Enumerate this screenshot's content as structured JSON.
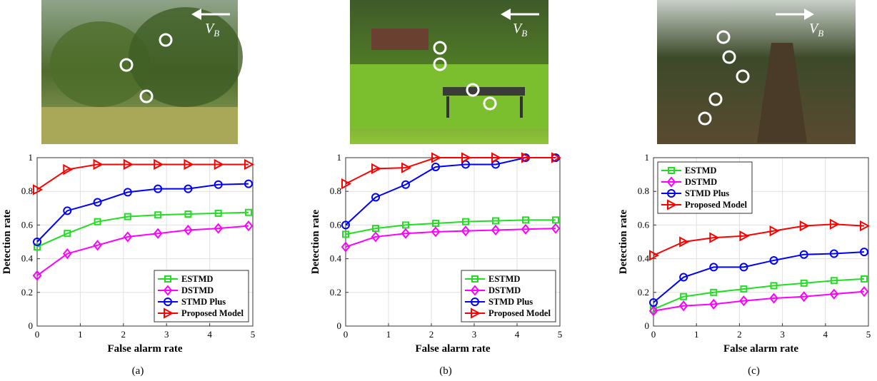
{
  "chart_data": [
    {
      "type": "line",
      "caption": "(a)",
      "image_label": "V",
      "image_label_sub": "B",
      "x_label": "False alarm rate",
      "y_label": "Detection rate",
      "x": [
        0,
        0.7,
        1.4,
        2.1,
        2.8,
        3.5,
        4.2,
        4.9
      ],
      "xlim": [
        0,
        5
      ],
      "ylim": [
        0,
        1
      ],
      "xticks": [
        0,
        1,
        2,
        3,
        4,
        5
      ],
      "yticks": [
        0,
        0.2,
        0.4,
        0.6,
        0.8,
        1
      ],
      "grid": true,
      "legend": "lower-right",
      "series": [
        {
          "name": "ESTMD",
          "color": "#22dd22",
          "marker": "square",
          "values": [
            0.47,
            0.55,
            0.62,
            0.65,
            0.66,
            0.665,
            0.67,
            0.675
          ]
        },
        {
          "name": "DSTMD",
          "color": "#ff00ff",
          "marker": "diamond",
          "values": [
            0.3,
            0.43,
            0.48,
            0.53,
            0.55,
            0.57,
            0.58,
            0.595
          ]
        },
        {
          "name": "STMD Plus",
          "color": "#0000ff",
          "marker": "circle",
          "values": [
            0.5,
            0.685,
            0.735,
            0.795,
            0.815,
            0.815,
            0.84,
            0.845
          ]
        },
        {
          "name": "Proposed Model",
          "color": "#ff0000",
          "marker": "triangle",
          "values": [
            0.81,
            0.93,
            0.96,
            0.96,
            0.96,
            0.96,
            0.96,
            0.96
          ]
        }
      ]
    },
    {
      "type": "line",
      "caption": "(b)",
      "image_label": "V",
      "image_label_sub": "B",
      "x_label": "False alarm rate",
      "y_label": "Detection rate",
      "x": [
        0,
        0.7,
        1.4,
        2.1,
        2.8,
        3.5,
        4.2,
        4.9
      ],
      "xlim": [
        0,
        5
      ],
      "ylim": [
        0,
        1
      ],
      "xticks": [
        0,
        1,
        2,
        3,
        4,
        5
      ],
      "yticks": [
        0,
        0.2,
        0.4,
        0.6,
        0.8,
        1
      ],
      "grid": true,
      "legend": "lower-right",
      "series": [
        {
          "name": "ESTMD",
          "color": "#22dd22",
          "marker": "square",
          "values": [
            0.545,
            0.58,
            0.6,
            0.61,
            0.62,
            0.625,
            0.63,
            0.63
          ]
        },
        {
          "name": "DSTMD",
          "color": "#ff00ff",
          "marker": "diamond",
          "values": [
            0.47,
            0.53,
            0.55,
            0.56,
            0.565,
            0.57,
            0.575,
            0.58
          ]
        },
        {
          "name": "STMD Plus",
          "color": "#0000ff",
          "marker": "circle",
          "values": [
            0.6,
            0.765,
            0.84,
            0.945,
            0.96,
            0.96,
            1.0,
            1.0
          ]
        },
        {
          "name": "Proposed Model",
          "color": "#ff0000",
          "marker": "triangle",
          "values": [
            0.845,
            0.935,
            0.94,
            1.0,
            1.0,
            1.0,
            1.0,
            1.0
          ]
        }
      ]
    },
    {
      "type": "line",
      "caption": "(c)",
      "image_label": "V",
      "image_label_sub": "B",
      "x_label": "False alarm rate",
      "y_label": "Detection rate",
      "x": [
        0,
        0.7,
        1.4,
        2.1,
        2.8,
        3.5,
        4.2,
        4.9
      ],
      "xlim": [
        0,
        5
      ],
      "ylim": [
        0,
        1
      ],
      "xticks": [
        0,
        1,
        2,
        3,
        4,
        5
      ],
      "yticks": [
        0,
        0.2,
        0.4,
        0.6,
        0.8,
        1
      ],
      "grid": true,
      "legend": "upper-left",
      "series": [
        {
          "name": "ESTMD",
          "color": "#22dd22",
          "marker": "square",
          "values": [
            0.1,
            0.175,
            0.2,
            0.22,
            0.24,
            0.255,
            0.27,
            0.28
          ]
        },
        {
          "name": "DSTMD",
          "color": "#ff00ff",
          "marker": "diamond",
          "values": [
            0.09,
            0.12,
            0.13,
            0.15,
            0.165,
            0.175,
            0.19,
            0.205
          ]
        },
        {
          "name": "STMD Plus",
          "color": "#0000ff",
          "marker": "circle",
          "values": [
            0.14,
            0.29,
            0.35,
            0.35,
            0.39,
            0.425,
            0.43,
            0.44
          ]
        },
        {
          "name": "Proposed Model",
          "color": "#ff0000",
          "marker": "triangle",
          "values": [
            0.42,
            0.5,
            0.525,
            0.535,
            0.565,
            0.595,
            0.605,
            0.595
          ]
        }
      ]
    }
  ]
}
